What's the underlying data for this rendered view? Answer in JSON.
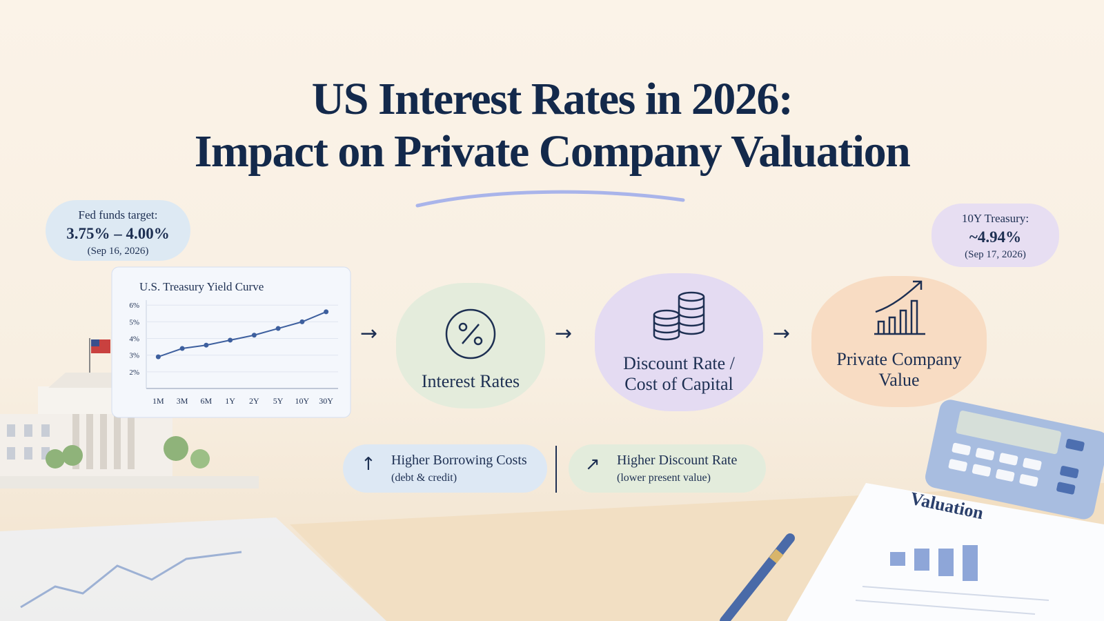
{
  "header": {
    "title_lines": [
      "US Interest Rates in 2026:",
      "Impact on Private Company Valuation"
    ]
  },
  "callouts": {
    "fed": {
      "label": "Fed funds target:",
      "value": "3.75% – 4.00%",
      "date": "(Sep 16, 2026)"
    },
    "treasury": {
      "label": "10Y Treasury:",
      "value": "~4.94%",
      "date": "(Sep 17, 2026)"
    }
  },
  "chart_data": {
    "type": "line",
    "title": "U.S. Treasury Yield Curve",
    "categories": [
      "1M",
      "3M",
      "6M",
      "1Y",
      "2Y",
      "5Y",
      "10Y",
      "30Y"
    ],
    "values": [
      2.9,
      3.4,
      3.6,
      3.9,
      4.2,
      4.6,
      5.0,
      5.6
    ],
    "color": "#3d5f9e",
    "ylim": [
      1,
      6.3
    ],
    "yticks": [
      {
        "value": 2,
        "label": "2%"
      },
      {
        "value": 3,
        "label": "3%"
      },
      {
        "value": 4,
        "label": "4%"
      },
      {
        "value": 5,
        "label": "5%"
      },
      {
        "value": 6,
        "label": "6%"
      }
    ],
    "grid": true
  },
  "flow": {
    "nodes": [
      {
        "lines": [
          "Interest Rates"
        ]
      },
      {
        "lines": [
          "Discount Rate /",
          "Cost of Capital"
        ]
      },
      {
        "lines": [
          "Private Company",
          "Value"
        ]
      }
    ]
  },
  "effects": [
    {
      "title": "Higher Borrowing Costs",
      "note": "(debt & credit)"
    },
    {
      "title": "Higher Discount Rate",
      "note": "(lower present value)"
    }
  ],
  "decor": {
    "doc_label": "Valuation"
  }
}
